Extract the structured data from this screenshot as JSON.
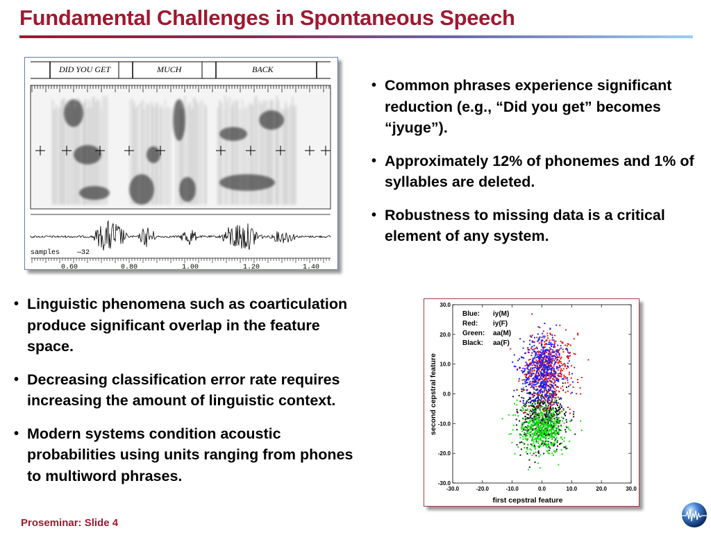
{
  "title": "Fundamental Challenges in Spontaneous Speech",
  "bullets_top": [
    "Common phrases experience significant reduction (e.g., “Did you get” becomes “jyuge”).",
    "Approximately 12% of phonemes and 1% of syllables are deleted.",
    "Robustness to missing data is a critical element of any system."
  ],
  "bullets_bottom": [
    "Linguistic phenomena such as coarticulation produce significant overlap in the feature space.",
    "Decreasing classification error rate requires increasing the amount of linguistic context.",
    "Modern systems condition acoustic probabilities using units ranging from phones to multiword phrases."
  ],
  "spectrogram": {
    "segments": [
      "DID YOU GET",
      "MUCH",
      "BACK"
    ],
    "samples_label": "samples",
    "samples_value": "—32",
    "time_ticks": [
      "0.60",
      "0.80",
      "1.00",
      "1.20",
      "1.40"
    ]
  },
  "chart_data": {
    "type": "scatter",
    "xlabel": "first cepstral feature",
    "ylabel": "second cepstral feature",
    "xlim": [
      -30,
      30
    ],
    "ylim": [
      -30,
      30
    ],
    "xticks": [
      "-30.0",
      "-20.0",
      "-10.0",
      "0.0",
      "10.0",
      "20.0",
      "30.0"
    ],
    "yticks": [
      "30.0",
      "20.0",
      "10.0",
      "0.0",
      "-10.0",
      "-20.0",
      "-30.0"
    ],
    "legend_position": "top-left",
    "series": [
      {
        "name": "iy(M)",
        "legend_color_label": "Blue:",
        "color": "#1a1aff",
        "center": [
          0,
          8
        ],
        "spread": [
          3.5,
          6
        ]
      },
      {
        "name": "iy(F)",
        "legend_color_label": "Red:",
        "color": "#e01818",
        "center": [
          2,
          8
        ],
        "spread": [
          4,
          6
        ]
      },
      {
        "name": "aa(M)",
        "legend_color_label": "Green:",
        "color": "#10e010",
        "center": [
          0,
          -12
        ],
        "spread": [
          4,
          4
        ]
      },
      {
        "name": "aa(F)",
        "legend_color_label": "Black:",
        "color": "#111111",
        "center": [
          0,
          -8
        ],
        "spread": [
          4,
          5
        ]
      }
    ]
  },
  "footer": "Proseminar: Slide 4",
  "logo_icon": "globe-waveform-icon"
}
